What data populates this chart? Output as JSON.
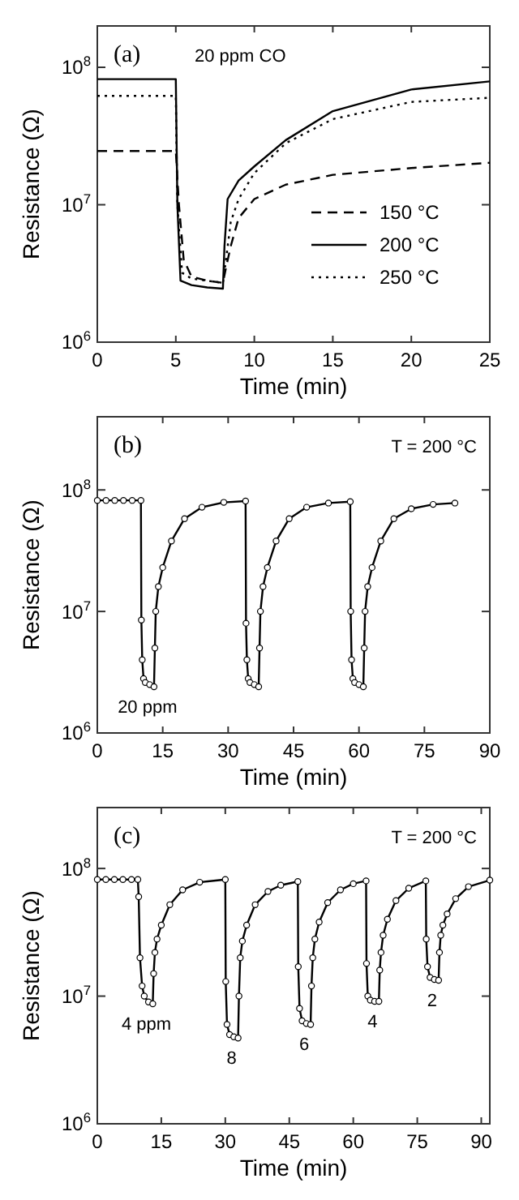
{
  "chart_data": [
    {
      "type": "line",
      "xlabel": "Time (min)",
      "ylabel": "Resistance (Ω)",
      "log": "y",
      "xlim": [
        0,
        25
      ],
      "xticks": [
        0,
        5,
        10,
        15,
        20,
        25
      ],
      "ylim": [
        1000000,
        200000000
      ],
      "yticks": [
        {
          "value": 1000000,
          "label": "10$^{6}$"
        },
        {
          "value": 10000000,
          "label": "10$^{7}$"
        },
        {
          "value": 100000000,
          "label": "10$^{8}$"
        }
      ],
      "legend": "bottom right",
      "annotations": [
        "(a)",
        "20 ppm CO"
      ],
      "series": [
        {
          "name": "150 °C",
          "color": "#000000",
          "line_style": "dashed",
          "x": [
            0,
            5,
            5.2,
            5.5,
            6,
            7,
            8,
            8.2,
            8.5,
            9,
            10,
            12,
            15,
            20,
            25
          ],
          "values": [
            24600000,
            24600000,
            10000000,
            4000000,
            3000000,
            2800000,
            2700000,
            3500000,
            5000000,
            8000000,
            11000000,
            14000000,
            16500000,
            18500000,
            20200000
          ]
        },
        {
          "name": "200 °C",
          "color": "#000000",
          "line_style": "solid",
          "x": [
            0,
            5,
            5.1,
            5.3,
            6,
            7,
            8,
            8.1,
            8.3,
            9,
            10,
            12,
            15,
            20,
            25
          ],
          "values": [
            82000000,
            82000000,
            10000000,
            2800000,
            2600000,
            2500000,
            2450000,
            5000000,
            11000000,
            15000000,
            19000000,
            29500000,
            48000000,
            69000000,
            79000000
          ]
        },
        {
          "name": "250 °C",
          "color": "#000000",
          "line_style": "dotted",
          "x": [
            0,
            5,
            5.1,
            5.4,
            6,
            7,
            8,
            8.2,
            8.5,
            9,
            10,
            12,
            15,
            20,
            25
          ],
          "values": [
            62000000,
            62000000,
            10000000,
            3200000,
            2900000,
            2800000,
            2700000,
            4000000,
            7500000,
            11000000,
            17000000,
            28000000,
            42000000,
            56000000,
            60000000
          ]
        }
      ]
    },
    {
      "type": "line",
      "xlabel": "Time (min)",
      "ylabel": "Resistance (Ω)",
      "log": "y",
      "xlim": [
        0,
        90
      ],
      "xticks": [
        0,
        15,
        30,
        45,
        60,
        75,
        90
      ],
      "ylim": [
        1000000,
        400000000
      ],
      "yticks": [
        {
          "value": 1000000,
          "label": "10$^{6}$"
        },
        {
          "value": 10000000,
          "label": "10$^{7}$"
        },
        {
          "value": 100000000,
          "label": "10$^{8}$"
        }
      ],
      "marker": "circle",
      "annotations": [
        "(b)",
        "T = 200 °C",
        {
          "text": "20 ppm",
          "x": 11.5,
          "y": 2400000
        }
      ],
      "series": [
        {
          "color": "#000000",
          "x": [
            0,
            2,
            4,
            6,
            8,
            10,
            10.1,
            10.3,
            10.6,
            11,
            12,
            13,
            13.2,
            13.4,
            14,
            15,
            17,
            20,
            24,
            29,
            34,
            34.1,
            34.3,
            34.6,
            35,
            36,
            37,
            37.2,
            37.4,
            38,
            39,
            41,
            44,
            48,
            53,
            58,
            58.1,
            58.3,
            58.6,
            59,
            60,
            61,
            61.2,
            61.4,
            62,
            63,
            65,
            68,
            72,
            77,
            82
          ],
          "values": [
            82000000,
            82000000,
            82000000,
            82000000,
            82000000,
            82000000,
            8500000,
            4000000,
            2800000,
            2600000,
            2500000,
            2400000,
            5000000,
            10000000,
            16000000,
            23000000,
            38000000,
            58000000,
            72000000,
            79000000,
            81000000,
            8000000,
            4000000,
            2800000,
            2600000,
            2500000,
            2400000,
            5000000,
            10000000,
            16000000,
            23000000,
            38000000,
            58000000,
            72000000,
            78000000,
            80000000,
            10000000,
            4000000,
            2800000,
            2600000,
            2500000,
            2400000,
            5000000,
            10000000,
            16000000,
            23000000,
            38000000,
            58000000,
            70000000,
            76000000,
            78000000
          ]
        }
      ]
    },
    {
      "type": "line",
      "xlabel": "Time (min)",
      "ylabel": "Resistance (Ω)",
      "log": "y",
      "xlim": [
        0,
        92
      ],
      "xticks": [
        0,
        15,
        30,
        45,
        60,
        75,
        90
      ],
      "ylim": [
        1000000,
        300000000
      ],
      "yticks": [
        {
          "value": 1000000,
          "label": "10$^{6}$"
        },
        {
          "value": 10000000,
          "label": "10$^{7}$"
        },
        {
          "value": 100000000,
          "label": "10$^{8}$"
        }
      ],
      "marker": "circle",
      "annotations": [
        "(c)",
        "T = 200 °C",
        {
          "text": "4 ppm",
          "x": 11.5,
          "y": 8700000
        },
        {
          "text": "8",
          "x": 31.5,
          "y": 4700000
        },
        {
          "text": "6",
          "x": 48.5,
          "y": 6000000
        },
        {
          "text": "4",
          "x": 64.5,
          "y": 9100000
        },
        {
          "text": "2",
          "x": 78.5,
          "y": 13300000
        }
      ],
      "series": [
        {
          "color": "#000000",
          "x": [
            0,
            2,
            4,
            6,
            8,
            9.5,
            9.7,
            10,
            10.5,
            11,
            12,
            13,
            13.2,
            13.5,
            14,
            15,
            17,
            20,
            24,
            30,
            30.1,
            30.4,
            31,
            32,
            33,
            33.2,
            33.5,
            34,
            35,
            37,
            40,
            43,
            47,
            47.1,
            47.4,
            48,
            49,
            50,
            50.2,
            50.5,
            51,
            52,
            54,
            57,
            60,
            63,
            63.1,
            63.4,
            64,
            65,
            66,
            66.2,
            66.5,
            67,
            68,
            70,
            73,
            77,
            77.1,
            77.4,
            78,
            79,
            80,
            80.2,
            80.5,
            81,
            82,
            84,
            87,
            92
          ],
          "values": [
            82000000,
            82000000,
            82000000,
            82000000,
            82000000,
            82000000,
            60000000,
            20000000,
            12000000,
            10000000,
            9000000,
            8700000,
            15000000,
            22000000,
            28000000,
            36000000,
            52000000,
            68000000,
            78000000,
            82000000,
            13000000,
            6000000,
            5000000,
            4800000,
            4700000,
            10000000,
            20000000,
            27000000,
            36000000,
            52000000,
            66000000,
            74000000,
            79000000,
            17000000,
            8000000,
            6400000,
            6100000,
            6000000,
            12000000,
            20000000,
            28000000,
            38000000,
            54000000,
            68000000,
            76000000,
            80000000,
            18000000,
            10000000,
            9300000,
            9100000,
            9100000,
            16000000,
            22000000,
            30000000,
            40000000,
            56000000,
            70000000,
            80000000,
            28000000,
            17000000,
            14000000,
            13500000,
            13300000,
            22000000,
            30000000,
            36000000,
            44000000,
            58000000,
            72000000,
            81000000
          ]
        }
      ]
    }
  ]
}
